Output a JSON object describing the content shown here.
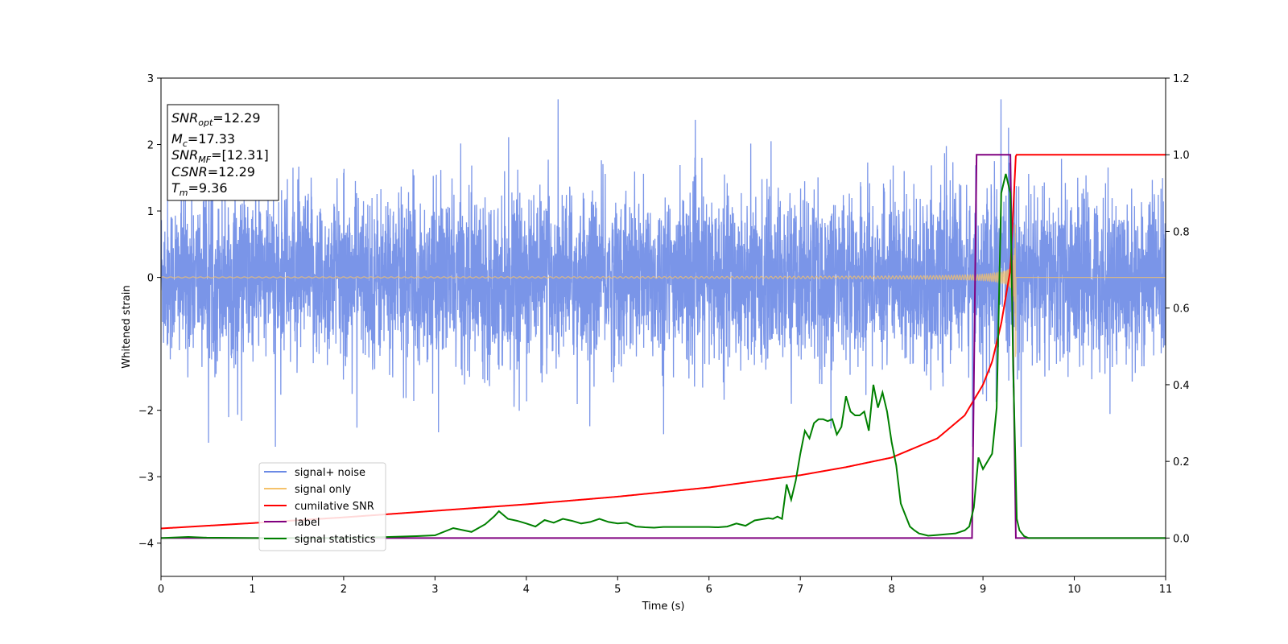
{
  "chart_data": {
    "type": "line",
    "title": "",
    "xlabel": "Time (s)",
    "ylabel": "Whitened strain",
    "xlim": [
      0,
      11
    ],
    "ylim": [
      -4.5,
      3
    ],
    "y2lim": [
      -0.1,
      1.2
    ],
    "grid": false,
    "legend_position": "lower-left",
    "x_ticks": [
      "0",
      "1",
      "2",
      "3",
      "4",
      "5",
      "6",
      "7",
      "8",
      "9",
      "10",
      "11"
    ],
    "y_ticks": [
      "3",
      "2",
      "1",
      "0",
      "−2",
      "−3",
      "−4"
    ],
    "y2_ticks": [
      "1.2",
      "1.0",
      "0.8",
      "0.6",
      "0.4",
      "0.2",
      "0.0"
    ],
    "annotation": {
      "snr_opt": {
        "base": "SNR",
        "sub": "opt",
        "value": "=12.29"
      },
      "mc": {
        "base": "M",
        "sub": "c",
        "value": "=17.33"
      },
      "snr_mf": {
        "base": "SNR",
        "sub": "MF",
        "value": "=[12.31]"
      },
      "csnr": {
        "base": "CSNR",
        "sub": "",
        "value": "=12.29"
      },
      "tm": {
        "base": "T",
        "sub": "m",
        "value": "=9.36"
      }
    },
    "series": [
      {
        "name": "signal+ noise",
        "color": "#6b8ae5",
        "axis": "left",
        "style": "noise",
        "amplitude": 1.0,
        "extreme_range": [
          -2.55,
          2.68
        ]
      },
      {
        "name": "signal only",
        "color": "#f5c26b",
        "axis": "left",
        "style": "chirp",
        "t_merge": 9.36,
        "amplitude_max": 1.3
      },
      {
        "name": "cumilative SNR",
        "color": "#ff0000",
        "axis": "right",
        "x": [
          0,
          1,
          2,
          3,
          4,
          5,
          6,
          7,
          7.5,
          8,
          8.5,
          8.8,
          9,
          9.1,
          9.2,
          9.3,
          9.36,
          11
        ],
        "values": [
          0.025,
          0.039,
          0.054,
          0.071,
          0.088,
          0.108,
          0.132,
          0.164,
          0.185,
          0.21,
          0.26,
          0.32,
          0.4,
          0.46,
          0.56,
          0.7,
          1.0,
          1.0
        ]
      },
      {
        "name": "label",
        "color": "#800080",
        "axis": "right",
        "x": [
          0,
          8.88,
          8.93,
          9.3,
          9.36,
          11
        ],
        "values": [
          0,
          0,
          1,
          1,
          0,
          0
        ]
      },
      {
        "name": "signal statistics",
        "color": "#008000",
        "axis": "right",
        "x": [
          0,
          0.3,
          0.5,
          1,
          1.5,
          2,
          2.5,
          2.8,
          3,
          3.2,
          3.4,
          3.55,
          3.65,
          3.7,
          3.8,
          3.9,
          4,
          4.1,
          4.2,
          4.3,
          4.4,
          4.5,
          4.6,
          4.7,
          4.8,
          4.9,
          5,
          5.1,
          5.2,
          5.3,
          5.4,
          5.5,
          5.6,
          5.7,
          5.8,
          5.9,
          6,
          6.1,
          6.2,
          6.3,
          6.4,
          6.5,
          6.6,
          6.65,
          6.7,
          6.75,
          6.8,
          6.85,
          6.9,
          6.95,
          7,
          7.05,
          7.1,
          7.15,
          7.2,
          7.25,
          7.3,
          7.35,
          7.4,
          7.45,
          7.5,
          7.55,
          7.6,
          7.65,
          7.7,
          7.75,
          7.8,
          7.85,
          7.9,
          7.95,
          8,
          8.05,
          8.1,
          8.15,
          8.2,
          8.25,
          8.3,
          8.4,
          8.5,
          8.6,
          8.7,
          8.8,
          8.85,
          8.9,
          8.95,
          9.0,
          9.05,
          9.1,
          9.15,
          9.2,
          9.25,
          9.3,
          9.33,
          9.37,
          9.4,
          9.45,
          9.5,
          9.6,
          10,
          11
        ],
        "values": [
          0.0,
          0.003,
          0.001,
          0.0,
          0.0,
          0.0,
          0.003,
          0.005,
          0.007,
          0.026,
          0.016,
          0.036,
          0.057,
          0.07,
          0.05,
          0.045,
          0.038,
          0.03,
          0.047,
          0.04,
          0.05,
          0.045,
          0.038,
          0.042,
          0.05,
          0.042,
          0.038,
          0.04,
          0.03,
          0.028,
          0.027,
          0.029,
          0.029,
          0.029,
          0.029,
          0.029,
          0.029,
          0.028,
          0.03,
          0.038,
          0.032,
          0.046,
          0.05,
          0.052,
          0.05,
          0.056,
          0.05,
          0.14,
          0.1,
          0.15,
          0.22,
          0.28,
          0.26,
          0.3,
          0.31,
          0.31,
          0.305,
          0.31,
          0.27,
          0.29,
          0.37,
          0.33,
          0.32,
          0.32,
          0.33,
          0.28,
          0.4,
          0.34,
          0.38,
          0.33,
          0.25,
          0.19,
          0.09,
          0.06,
          0.03,
          0.02,
          0.012,
          0.006,
          0.008,
          0.01,
          0.012,
          0.02,
          0.03,
          0.08,
          0.21,
          0.18,
          0.2,
          0.22,
          0.34,
          0.9,
          0.95,
          0.9,
          0.45,
          0.05,
          0.02,
          0.005,
          0.0,
          0.0,
          0.0,
          0.0
        ]
      }
    ]
  }
}
